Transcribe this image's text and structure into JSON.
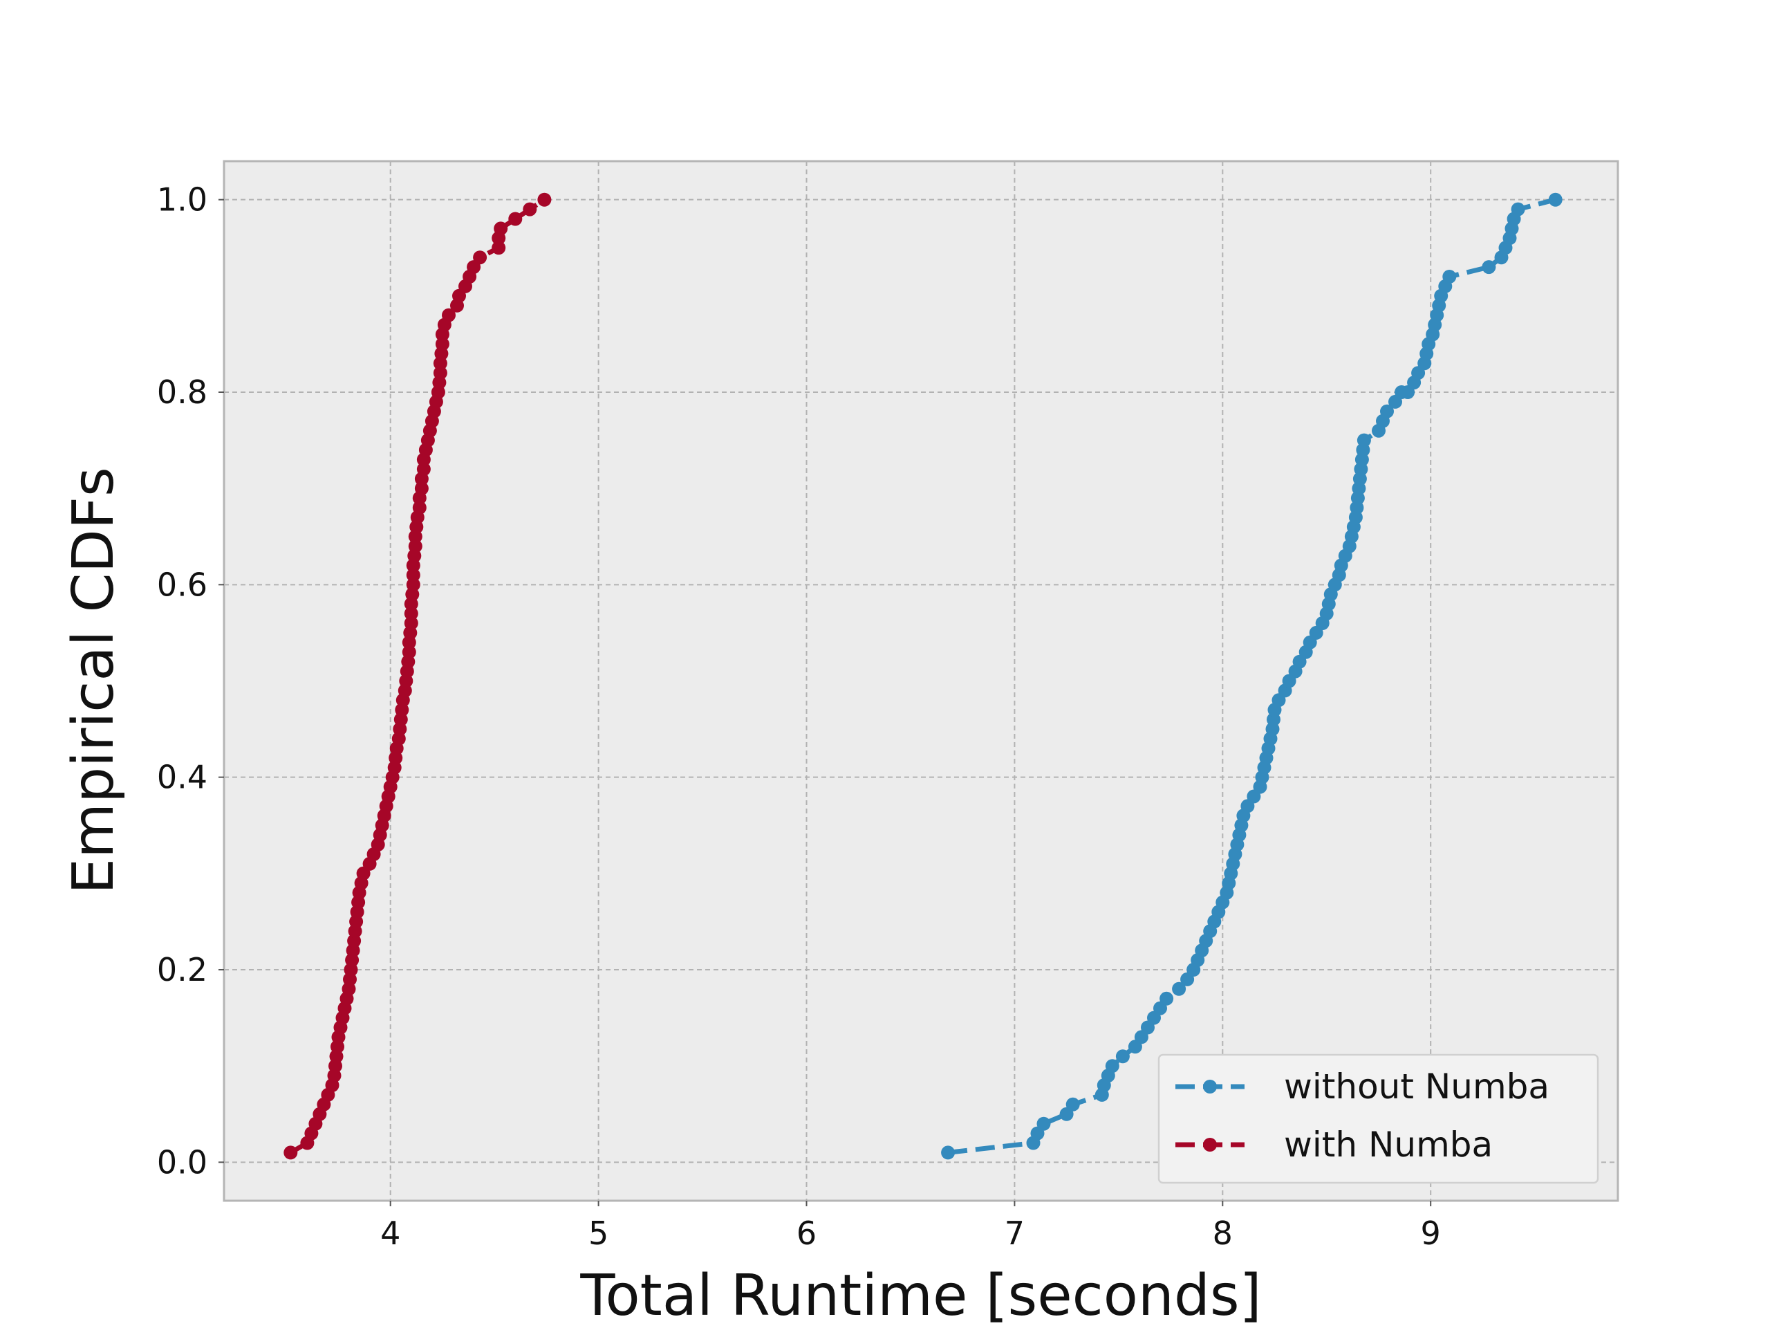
{
  "chart_data": {
    "type": "line",
    "title": "",
    "xlabel": "Total Runtime [seconds]",
    "ylabel": "Empirical CDFs",
    "xlim": [
      3.2,
      9.9
    ],
    "ylim": [
      -0.04,
      1.04
    ],
    "xticks": [
      "4",
      "5",
      "6",
      "7",
      "8",
      "9"
    ],
    "xtick_values": [
      4,
      5,
      6,
      7,
      8,
      9
    ],
    "yticks": [
      "0.0",
      "0.2",
      "0.4",
      "0.6",
      "0.8",
      "1.0"
    ],
    "ytick_values": [
      0.0,
      0.2,
      0.4,
      0.6,
      0.8,
      1.0
    ],
    "grid": true,
    "legend_position": "lower right",
    "background": "#ececec",
    "series": [
      {
        "name": "without Numba",
        "color": "#348abd",
        "line_style": "dashed",
        "marker": "circle",
        "points": [
          [
            6.68,
            0.01
          ],
          [
            7.09,
            0.02
          ],
          [
            7.11,
            0.03
          ],
          [
            7.14,
            0.04
          ],
          [
            7.25,
            0.05
          ],
          [
            7.28,
            0.06
          ],
          [
            7.42,
            0.07
          ],
          [
            7.43,
            0.08
          ],
          [
            7.45,
            0.09
          ],
          [
            7.47,
            0.1
          ],
          [
            7.52,
            0.11
          ],
          [
            7.58,
            0.12
          ],
          [
            7.61,
            0.13
          ],
          [
            7.64,
            0.14
          ],
          [
            7.67,
            0.15
          ],
          [
            7.7,
            0.16
          ],
          [
            7.73,
            0.17
          ],
          [
            7.79,
            0.18
          ],
          [
            7.83,
            0.19
          ],
          [
            7.86,
            0.2
          ],
          [
            7.88,
            0.21
          ],
          [
            7.9,
            0.22
          ],
          [
            7.92,
            0.23
          ],
          [
            7.94,
            0.24
          ],
          [
            7.96,
            0.25
          ],
          [
            7.98,
            0.26
          ],
          [
            8.0,
            0.27
          ],
          [
            8.02,
            0.28
          ],
          [
            8.03,
            0.29
          ],
          [
            8.04,
            0.3
          ],
          [
            8.05,
            0.31
          ],
          [
            8.06,
            0.32
          ],
          [
            8.07,
            0.33
          ],
          [
            8.08,
            0.34
          ],
          [
            8.09,
            0.35
          ],
          [
            8.1,
            0.36
          ],
          [
            8.12,
            0.37
          ],
          [
            8.15,
            0.38
          ],
          [
            8.18,
            0.39
          ],
          [
            8.19,
            0.4
          ],
          [
            8.2,
            0.41
          ],
          [
            8.21,
            0.42
          ],
          [
            8.22,
            0.43
          ],
          [
            8.23,
            0.44
          ],
          [
            8.24,
            0.45
          ],
          [
            8.245,
            0.46
          ],
          [
            8.25,
            0.47
          ],
          [
            8.27,
            0.48
          ],
          [
            8.3,
            0.49
          ],
          [
            8.32,
            0.5
          ],
          [
            8.35,
            0.51
          ],
          [
            8.37,
            0.52
          ],
          [
            8.4,
            0.53
          ],
          [
            8.42,
            0.54
          ],
          [
            8.45,
            0.55
          ],
          [
            8.48,
            0.56
          ],
          [
            8.5,
            0.57
          ],
          [
            8.51,
            0.58
          ],
          [
            8.52,
            0.59
          ],
          [
            8.54,
            0.6
          ],
          [
            8.56,
            0.61
          ],
          [
            8.57,
            0.62
          ],
          [
            8.59,
            0.63
          ],
          [
            8.61,
            0.64
          ],
          [
            8.62,
            0.65
          ],
          [
            8.63,
            0.66
          ],
          [
            8.64,
            0.67
          ],
          [
            8.645,
            0.68
          ],
          [
            8.65,
            0.69
          ],
          [
            8.655,
            0.7
          ],
          [
            8.66,
            0.71
          ],
          [
            8.665,
            0.72
          ],
          [
            8.67,
            0.73
          ],
          [
            8.675,
            0.74
          ],
          [
            8.68,
            0.75
          ],
          [
            8.75,
            0.76
          ],
          [
            8.77,
            0.77
          ],
          [
            8.79,
            0.78
          ],
          [
            8.83,
            0.79
          ],
          [
            8.86,
            0.8
          ],
          [
            8.89,
            0.8
          ],
          [
            8.92,
            0.81
          ],
          [
            8.94,
            0.82
          ],
          [
            8.97,
            0.83
          ],
          [
            8.98,
            0.84
          ],
          [
            8.99,
            0.85
          ],
          [
            9.01,
            0.86
          ],
          [
            9.02,
            0.87
          ],
          [
            9.03,
            0.88
          ],
          [
            9.04,
            0.89
          ],
          [
            9.05,
            0.9
          ],
          [
            9.07,
            0.91
          ],
          [
            9.09,
            0.92
          ],
          [
            9.28,
            0.93
          ],
          [
            9.34,
            0.94
          ],
          [
            9.36,
            0.95
          ],
          [
            9.38,
            0.96
          ],
          [
            9.39,
            0.97
          ],
          [
            9.4,
            0.98
          ],
          [
            9.42,
            0.99
          ],
          [
            9.6,
            1.0
          ]
        ]
      },
      {
        "name": "with Numba",
        "color": "#a60628",
        "line_style": "dashed",
        "marker": "circle",
        "points": [
          [
            3.52,
            0.01
          ],
          [
            3.6,
            0.02
          ],
          [
            3.62,
            0.03
          ],
          [
            3.64,
            0.04
          ],
          [
            3.66,
            0.05
          ],
          [
            3.68,
            0.06
          ],
          [
            3.7,
            0.07
          ],
          [
            3.72,
            0.08
          ],
          [
            3.73,
            0.09
          ],
          [
            3.735,
            0.1
          ],
          [
            3.74,
            0.11
          ],
          [
            3.745,
            0.12
          ],
          [
            3.75,
            0.13
          ],
          [
            3.76,
            0.14
          ],
          [
            3.77,
            0.15
          ],
          [
            3.78,
            0.16
          ],
          [
            3.79,
            0.17
          ],
          [
            3.8,
            0.18
          ],
          [
            3.805,
            0.19
          ],
          [
            3.81,
            0.2
          ],
          [
            3.815,
            0.21
          ],
          [
            3.82,
            0.22
          ],
          [
            3.825,
            0.23
          ],
          [
            3.83,
            0.24
          ],
          [
            3.835,
            0.25
          ],
          [
            3.84,
            0.26
          ],
          [
            3.845,
            0.27
          ],
          [
            3.85,
            0.28
          ],
          [
            3.86,
            0.29
          ],
          [
            3.87,
            0.3
          ],
          [
            3.9,
            0.31
          ],
          [
            3.92,
            0.32
          ],
          [
            3.94,
            0.33
          ],
          [
            3.95,
            0.34
          ],
          [
            3.96,
            0.35
          ],
          [
            3.97,
            0.36
          ],
          [
            3.98,
            0.37
          ],
          [
            3.99,
            0.38
          ],
          [
            4.0,
            0.39
          ],
          [
            4.01,
            0.4
          ],
          [
            4.02,
            0.41
          ],
          [
            4.025,
            0.42
          ],
          [
            4.03,
            0.43
          ],
          [
            4.04,
            0.44
          ],
          [
            4.045,
            0.45
          ],
          [
            4.05,
            0.46
          ],
          [
            4.055,
            0.47
          ],
          [
            4.06,
            0.48
          ],
          [
            4.07,
            0.49
          ],
          [
            4.075,
            0.5
          ],
          [
            4.08,
            0.51
          ],
          [
            4.085,
            0.52
          ],
          [
            4.09,
            0.53
          ],
          [
            4.09,
            0.54
          ],
          [
            4.095,
            0.55
          ],
          [
            4.1,
            0.56
          ],
          [
            4.1,
            0.57
          ],
          [
            4.1,
            0.58
          ],
          [
            4.105,
            0.59
          ],
          [
            4.11,
            0.6
          ],
          [
            4.11,
            0.61
          ],
          [
            4.11,
            0.62
          ],
          [
            4.115,
            0.63
          ],
          [
            4.12,
            0.64
          ],
          [
            4.12,
            0.65
          ],
          [
            4.125,
            0.66
          ],
          [
            4.13,
            0.67
          ],
          [
            4.14,
            0.68
          ],
          [
            4.14,
            0.69
          ],
          [
            4.15,
            0.7
          ],
          [
            4.15,
            0.71
          ],
          [
            4.16,
            0.72
          ],
          [
            4.16,
            0.73
          ],
          [
            4.17,
            0.74
          ],
          [
            4.18,
            0.75
          ],
          [
            4.19,
            0.76
          ],
          [
            4.2,
            0.77
          ],
          [
            4.21,
            0.78
          ],
          [
            4.22,
            0.79
          ],
          [
            4.23,
            0.8
          ],
          [
            4.235,
            0.81
          ],
          [
            4.24,
            0.82
          ],
          [
            4.24,
            0.83
          ],
          [
            4.245,
            0.84
          ],
          [
            4.25,
            0.85
          ],
          [
            4.25,
            0.86
          ],
          [
            4.26,
            0.87
          ],
          [
            4.28,
            0.88
          ],
          [
            4.32,
            0.89
          ],
          [
            4.33,
            0.9
          ],
          [
            4.36,
            0.91
          ],
          [
            4.38,
            0.92
          ],
          [
            4.4,
            0.93
          ],
          [
            4.43,
            0.94
          ],
          [
            4.52,
            0.95
          ],
          [
            4.52,
            0.96
          ],
          [
            4.53,
            0.97
          ],
          [
            4.6,
            0.98
          ],
          [
            4.67,
            0.99
          ],
          [
            4.74,
            1.0
          ]
        ]
      }
    ]
  }
}
